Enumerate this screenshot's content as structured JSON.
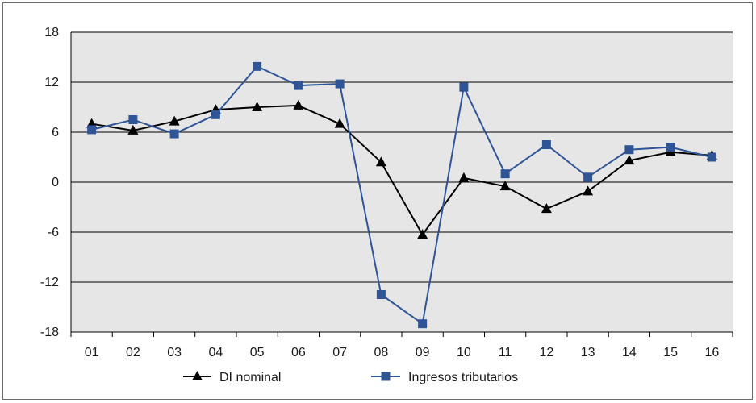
{
  "chart_data": {
    "type": "line",
    "title": "",
    "xlabel": "",
    "ylabel": "",
    "categories": [
      "01",
      "02",
      "03",
      "04",
      "05",
      "06",
      "07",
      "08",
      "09",
      "10",
      "11",
      "12",
      "13",
      "14",
      "15",
      "16"
    ],
    "ylim": [
      -18,
      18
    ],
    "yticks": [
      18,
      12,
      6,
      0,
      -6,
      -12,
      -18
    ],
    "grid": true,
    "legend_position": "bottom",
    "series": [
      {
        "name": "DI nominal",
        "color": "#000000",
        "marker": "triangle",
        "values": [
          7.0,
          6.2,
          7.3,
          8.7,
          9.0,
          9.2,
          7.0,
          2.4,
          -6.3,
          0.5,
          -0.5,
          -3.2,
          -1.1,
          2.6,
          3.6,
          3.2
        ]
      },
      {
        "name": "Ingresos tributarios",
        "color": "#2f5597",
        "marker": "square",
        "values": [
          6.3,
          7.5,
          5.8,
          8.1,
          13.9,
          11.6,
          11.8,
          -13.5,
          -17.0,
          11.4,
          1.0,
          4.5,
          0.6,
          3.9,
          4.2,
          3.0
        ]
      }
    ],
    "plot_background": "#e6e6e6"
  }
}
